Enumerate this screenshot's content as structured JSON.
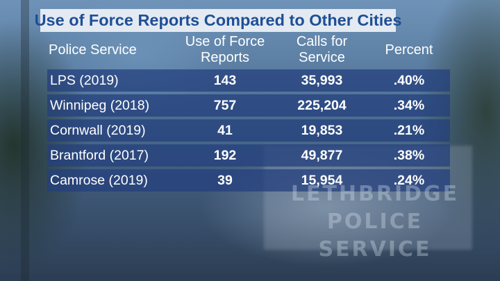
{
  "title": "Use of Force Reports Compared to Other Cities",
  "columns": [
    "Police Service",
    "Use of Force Reports",
    "Calls for Service",
    "Percent"
  ],
  "column_lines": [
    [
      "Police Service"
    ],
    [
      "Use of Force",
      "Reports"
    ],
    [
      "Calls for",
      "Service"
    ],
    [
      "Percent"
    ]
  ],
  "rows": [
    {
      "service": "LPS (2019)",
      "reports": "143",
      "calls": "35,993",
      "percent": ".40%"
    },
    {
      "service": "Winnipeg (2018)",
      "reports": "757",
      "calls": "225,204",
      "percent": ".34%"
    },
    {
      "service": "Cornwall (2019)",
      "reports": "41",
      "calls": "19,853",
      "percent": ".21%"
    },
    {
      "service": "Brantford (2017)",
      "reports": "192",
      "calls": "49,877",
      "percent": ".38%"
    },
    {
      "service": "Camrose (2019)",
      "reports": "39",
      "calls": "15,954",
      "percent": ".24%"
    }
  ],
  "background_sign_text": "LETHBRIDGE POLICE SERVICE",
  "colors": {
    "title_text": "#1f4e96",
    "title_bg": "#eef2f7",
    "row_bg": "#233e7d",
    "text": "#ffffff"
  }
}
